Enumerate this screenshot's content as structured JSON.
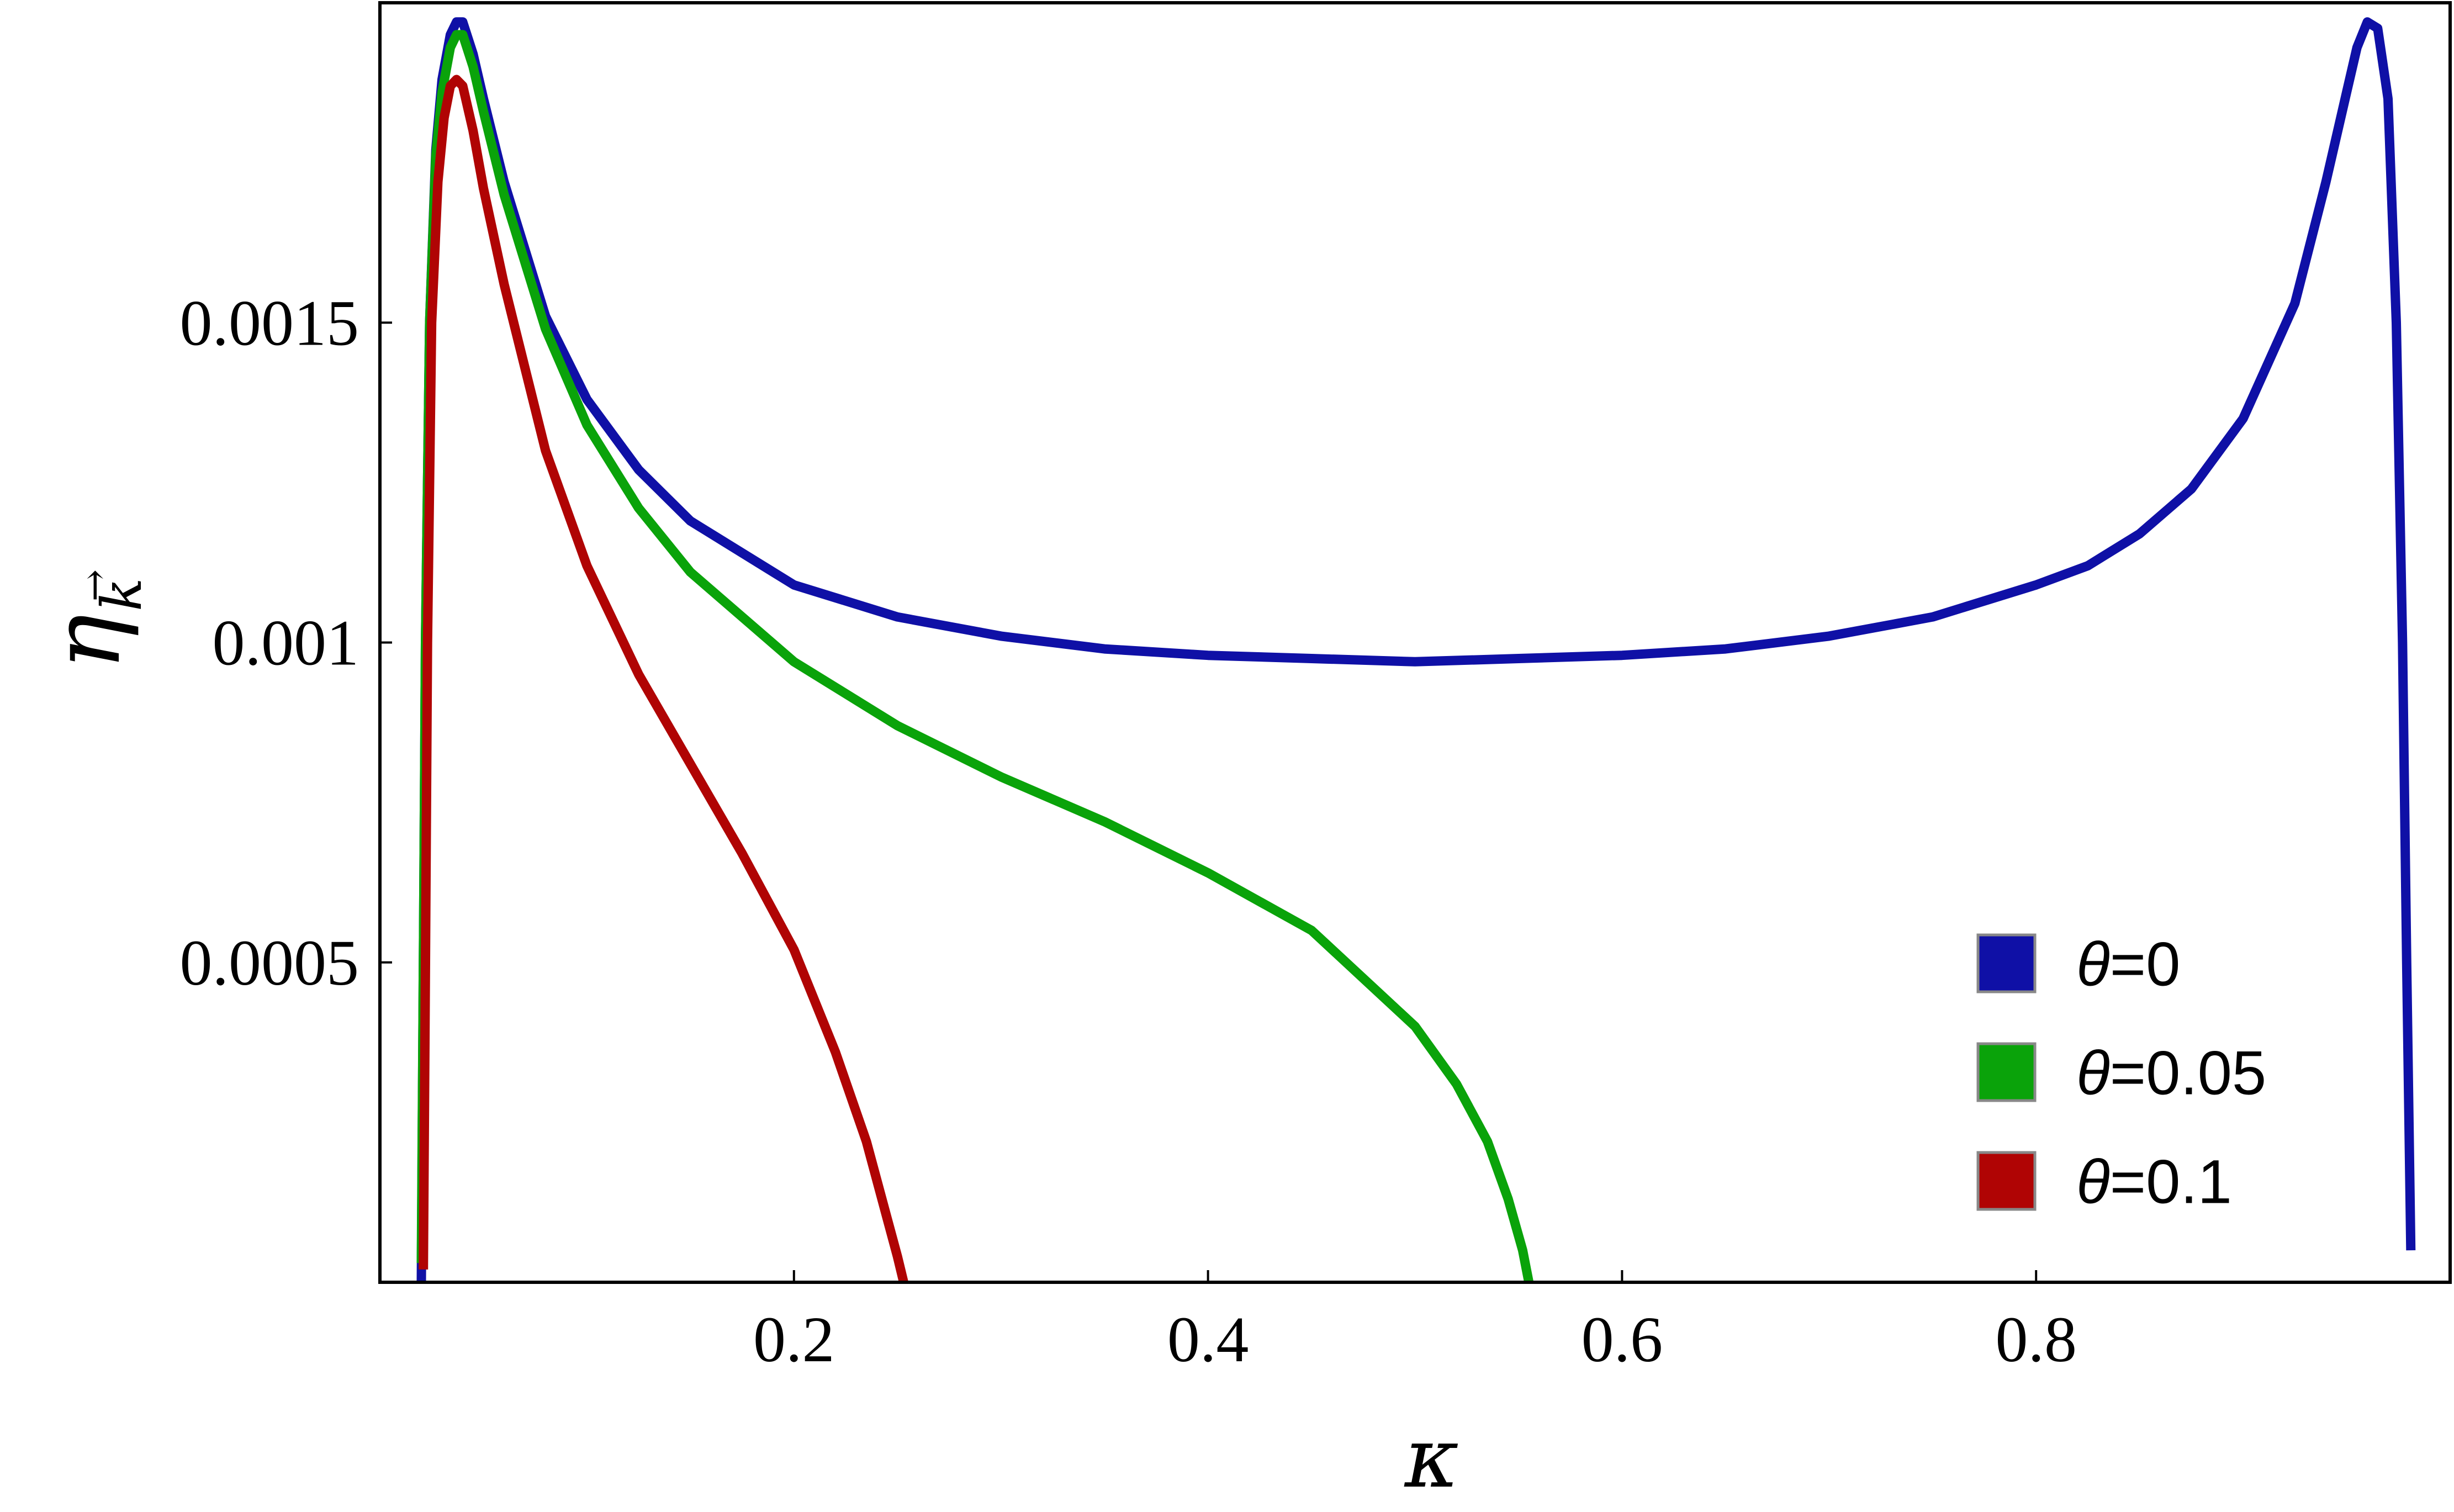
{
  "chart_data": {
    "type": "line",
    "title": "",
    "xlabel": "κ",
    "ylabel_main": "η",
    "ylabel_sub": "k",
    "ylabel_sub_accent": "→",
    "xlim": [
      0,
      1
    ],
    "ylim": [
      0,
      0.002
    ],
    "grid": false,
    "legend_position": "bottom-right",
    "x_ticks": [
      {
        "value": 0.2,
        "label": "0.2"
      },
      {
        "value": 0.4,
        "label": "0.4"
      },
      {
        "value": 0.6,
        "label": "0.6"
      },
      {
        "value": 0.8,
        "label": "0.8"
      }
    ],
    "y_ticks": [
      {
        "value": 0.0005,
        "label": "0.0005"
      },
      {
        "value": 0.001,
        "label": "0.001"
      },
      {
        "value": 0.0015,
        "label": "0.0015"
      }
    ],
    "series": [
      {
        "name": "θ=0",
        "color": "#0f10a6",
        "x": [
          0.02,
          0.021,
          0.022,
          0.024,
          0.027,
          0.03,
          0.034,
          0.037,
          0.04,
          0.045,
          0.05,
          0.06,
          0.08,
          0.1,
          0.125,
          0.15,
          0.2,
          0.25,
          0.3,
          0.35,
          0.4,
          0.45,
          0.5,
          0.55,
          0.6,
          0.65,
          0.7,
          0.75,
          0.8,
          0.825,
          0.85,
          0.875,
          0.9,
          0.925,
          0.94,
          0.95,
          0.955,
          0.96,
          0.965,
          0.97,
          0.974,
          0.977,
          0.979,
          0.981
        ],
        "y": [
          0.0,
          0.0005,
          0.001,
          0.0015,
          0.00177,
          0.00188,
          0.00195,
          0.00197,
          0.00197,
          0.00192,
          0.00185,
          0.00172,
          0.00151,
          0.00138,
          0.00127,
          0.00119,
          0.00109,
          0.00104,
          0.00101,
          0.00099,
          0.00098,
          0.000975,
          0.00097,
          0.000975,
          0.00098,
          0.00099,
          0.00101,
          0.00104,
          0.00109,
          0.00112,
          0.00117,
          0.00124,
          0.00135,
          0.00153,
          0.00172,
          0.00186,
          0.00193,
          0.00197,
          0.00196,
          0.00185,
          0.0015,
          0.001,
          0.0005,
          5e-05
        ]
      },
      {
        "name": "θ=0.05",
        "color": "#0aa30a",
        "x": [
          0.02,
          0.021,
          0.022,
          0.024,
          0.027,
          0.03,
          0.034,
          0.037,
          0.04,
          0.045,
          0.05,
          0.06,
          0.08,
          0.1,
          0.125,
          0.15,
          0.2,
          0.25,
          0.3,
          0.35,
          0.4,
          0.45,
          0.5,
          0.52,
          0.535,
          0.545,
          0.552,
          0.555
        ],
        "y": [
          3e-05,
          0.0005,
          0.001,
          0.0015,
          0.00176,
          0.00186,
          0.00193,
          0.00195,
          0.00195,
          0.0019,
          0.00183,
          0.0017,
          0.00149,
          0.00134,
          0.00121,
          0.00111,
          0.00097,
          0.00087,
          0.00079,
          0.00072,
          0.00064,
          0.00055,
          0.0004,
          0.00031,
          0.00022,
          0.00013,
          5e-05,
          0.0
        ]
      },
      {
        "name": "θ=0.1",
        "color": "#b00404",
        "x": [
          0.021,
          0.022,
          0.023,
          0.025,
          0.028,
          0.031,
          0.034,
          0.037,
          0.04,
          0.045,
          0.05,
          0.06,
          0.08,
          0.1,
          0.125,
          0.15,
          0.175,
          0.2,
          0.22,
          0.235,
          0.245,
          0.25,
          0.253
        ],
        "y": [
          2e-05,
          0.0005,
          0.001,
          0.0015,
          0.00172,
          0.00182,
          0.00187,
          0.00188,
          0.00187,
          0.0018,
          0.00171,
          0.00156,
          0.0013,
          0.00112,
          0.00095,
          0.00081,
          0.00067,
          0.00052,
          0.00036,
          0.00022,
          0.0001,
          4e-05,
          0.0
        ]
      }
    ]
  }
}
